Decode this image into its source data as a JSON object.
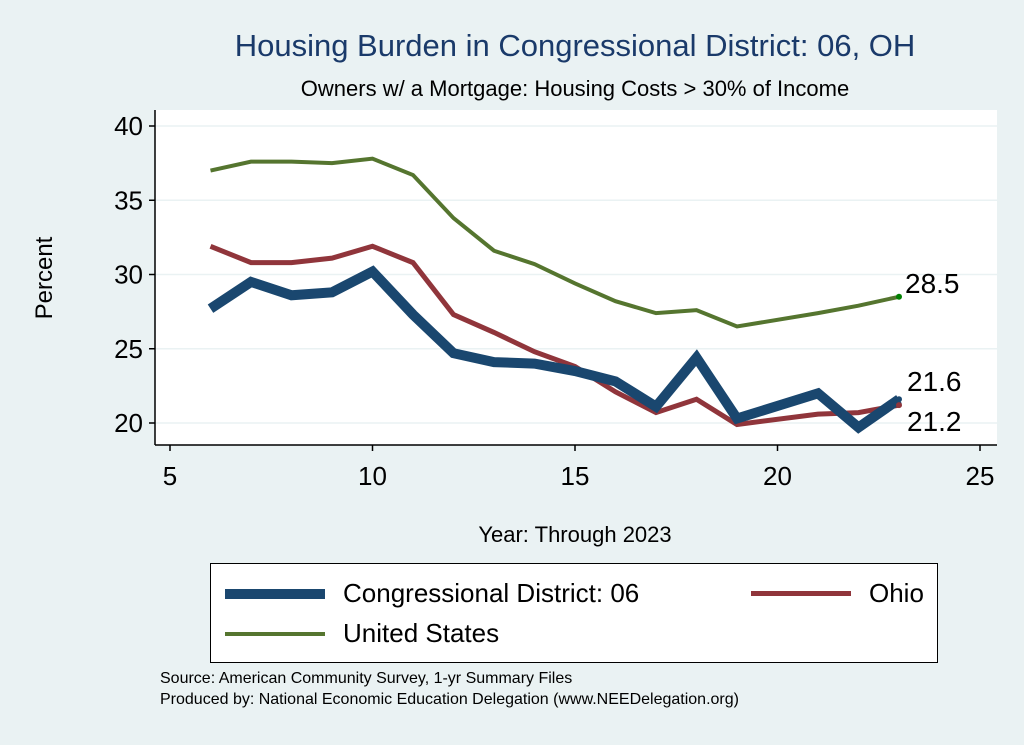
{
  "chart_data": {
    "type": "line",
    "title": "Housing Burden in Congressional District:  06, OH",
    "subtitle": "Owners w/ a Mortgage: Housing Costs > 30% of Income",
    "xlabel": "Year: Through 2023",
    "ylabel": "Percent",
    "xlim": [
      5,
      25
    ],
    "ylim": [
      20,
      40
    ],
    "xticks": [
      5,
      10,
      15,
      20,
      25
    ],
    "yticks": [
      20,
      25,
      30,
      35,
      40
    ],
    "grid": true,
    "legend_position": "bottom",
    "series": [
      {
        "name": "Congressional District:  06",
        "color": "#1a476f",
        "x": [
          6,
          7,
          8,
          9,
          10,
          11,
          12,
          13,
          14,
          15,
          16,
          17,
          18,
          19,
          21,
          22,
          23
        ],
        "y": [
          27.7,
          29.5,
          28.6,
          28.8,
          30.2,
          27.3,
          24.7,
          24.1,
          24.0,
          23.5,
          22.8,
          21.1,
          24.4,
          20.3,
          22.0,
          19.7,
          21.6
        ],
        "end_label": "21.6"
      },
      {
        "name": "Ohio",
        "color": "#90353b",
        "x": [
          6,
          7,
          8,
          9,
          10,
          11,
          12,
          13,
          14,
          15,
          16,
          17,
          18,
          19,
          21,
          22,
          23
        ],
        "y": [
          31.9,
          30.8,
          30.8,
          31.1,
          31.9,
          30.8,
          27.3,
          26.1,
          24.8,
          23.8,
          22.1,
          20.7,
          21.6,
          19.9,
          20.6,
          20.7,
          21.2
        ],
        "end_label": "21.2"
      },
      {
        "name": "United States",
        "color": "#55752f",
        "x": [
          6,
          7,
          8,
          9,
          10,
          11,
          12,
          13,
          14,
          15,
          16,
          17,
          18,
          19,
          21,
          22,
          23
        ],
        "y": [
          37.0,
          37.6,
          37.6,
          37.5,
          37.8,
          36.7,
          33.8,
          31.6,
          30.7,
          29.4,
          28.2,
          27.4,
          27.6,
          26.5,
          27.4,
          27.9,
          28.5
        ],
        "end_label": "28.5"
      }
    ]
  },
  "source": "Source: American Community Survey, 1-yr Summary Files",
  "producer": "Produced by: National Economic Education Delegation (www.NEEDelegation.org)"
}
